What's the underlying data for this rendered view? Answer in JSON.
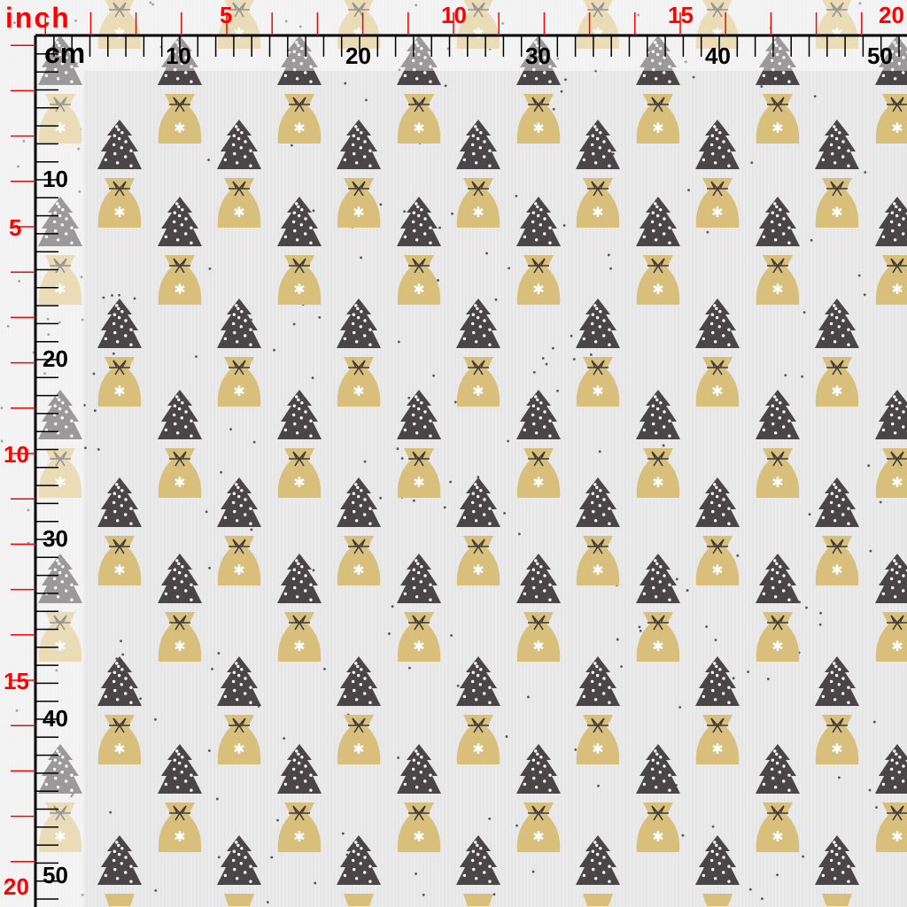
{
  "colors": {
    "background": "#e6e6e6",
    "tree": "#4a4648",
    "bag": "#d9bf7c",
    "bow": "#3d3a3b",
    "ruler_cm": "#000000",
    "ruler_inch": "#ff0000"
  },
  "ruler": {
    "cm_unit": "cm",
    "inch_unit": "inch",
    "cm_labels_top": [
      "10",
      "20",
      "30",
      "40",
      "50"
    ],
    "cm_labels_left": [
      "10",
      "20",
      "30",
      "40",
      "50"
    ],
    "inch_labels_top": [
      "5",
      "10",
      "15",
      "20"
    ],
    "inch_labels_left": [
      "5",
      "10",
      "15",
      "20"
    ]
  },
  "pattern": {
    "motif": "christmas-tree-over-gift-bag",
    "icons": [
      "tree-icon",
      "gift-bag-icon",
      "star-icon",
      "bow-icon"
    ]
  }
}
